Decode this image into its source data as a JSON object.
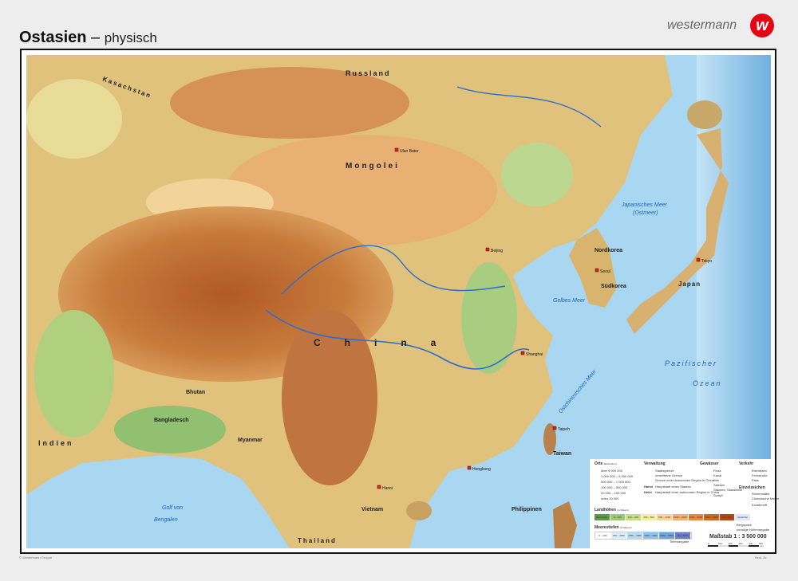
{
  "header": {
    "title": "Ostasien",
    "dash": "–",
    "subtitle": "physisch",
    "brand": "westermann",
    "logo_letter": "w",
    "logo_color": "#e30613"
  },
  "map": {
    "colors": {
      "sea": "#a9d6f0",
      "deep_sea": "#6fb0e0",
      "lowland": "#9cc87a",
      "hills": "#e8d89a",
      "highland": "#d89a58",
      "mountain": "#b8652e",
      "glacier": "#eef4ff"
    },
    "countries": [
      "Russland",
      "Kasachstan",
      "Mongolei",
      "China",
      "Indien",
      "Bangladesch",
      "Bhutan",
      "Myanmar",
      "Thailand",
      "Vietnam",
      "Nordkorea",
      "Südkorea",
      "Japan",
      "Taiwan",
      "Philippinen"
    ],
    "seas": [
      "Japanisches Meer",
      "(Ostmeer)",
      "Gelbes Meer",
      "Ostchinesisches Meer",
      "Pazifischer",
      "Ozean",
      "Golf von",
      "Bengalen"
    ],
    "cities": [
      "Hongkong",
      "Shanghai",
      "Beijing",
      "Seoul",
      "Tokyo",
      "Taipeh",
      "Hanoi",
      "Ulan Bator"
    ]
  },
  "legend": {
    "orte": {
      "title": "Orte",
      "unit": "(Einwohner)",
      "items": [
        "über 5 000 000",
        "1 000 000 – 5 000 000",
        "500 000 – 1 000 000",
        "100 000 – 500 000",
        "20 000 – 100 000",
        "unter 20 000"
      ]
    },
    "verwaltung": {
      "title": "Verwaltung",
      "items": [
        "Staatsgrenze",
        "umstrittene Grenze",
        "Grenze einer autonomen Region in China",
        "Hauptstadt eines Staates",
        "Hauptstadt einer autonomen Region in China"
      ],
      "samples": [
        "Hanoi",
        "Hefei"
      ]
    },
    "gewaesser": {
      "title": "Gewässer",
      "items": [
        "Fluss",
        "Kanal",
        "See",
        "Salzsee",
        "Stausee, Staudamm",
        "Sumpf"
      ]
    },
    "verkehr": {
      "title": "Verkehr",
      "items": [
        "Eisenbahn",
        "Fernstraße",
        "Pass"
      ]
    },
    "einzelzeichen": {
      "title": "Einzelzeichen",
      "items": [
        "Ruinenstätte",
        "Chinesische Mauer",
        "Korallenriff"
      ]
    },
    "landhoehen": {
      "title": "Landhöhen",
      "unit": "(in Metern)",
      "items": [
        "Depression",
        "0 – 100",
        "100 – 200",
        "200 – 500",
        "500 – 1000",
        "1000 – 2000",
        "2000 – 3000",
        "3000 – 4000",
        "über 4000",
        "Gletscher"
      ],
      "colors": [
        "#5e9a48",
        "#9cc87a",
        "#c8dc8c",
        "#f4eea0",
        "#f6d49a",
        "#f4b070",
        "#e8873e",
        "#cc6a22",
        "#b04a18",
        "#dde8f4"
      ]
    },
    "meerestiefen": {
      "title": "Meerestiefen",
      "unit": "(in Metern)",
      "items": [
        "0 – 200",
        "200 – 2000",
        "2000 – 4000",
        "4000 – 6000",
        "6000 – 8000",
        "über 8000"
      ],
      "colors": [
        "#ffffff",
        "#dcefff",
        "#b8dcf6",
        "#8cc4ec",
        "#6ea6de",
        "#6a7ec8"
      ]
    },
    "tiefenangabe": "Tiefenangabe",
    "bergspitze": "Bergspitze",
    "hoehenangabe": "sonstige Höhenangabe",
    "scale": {
      "title": "Maßstab 1 : 3 500 000",
      "ticks": [
        "0",
        "100",
        "200",
        "300",
        "400",
        "500"
      ],
      "unit": "km"
    }
  },
  "footer": {
    "copyright": "© Westermann Gruppe",
    "order_no": "Best.-Nr."
  }
}
